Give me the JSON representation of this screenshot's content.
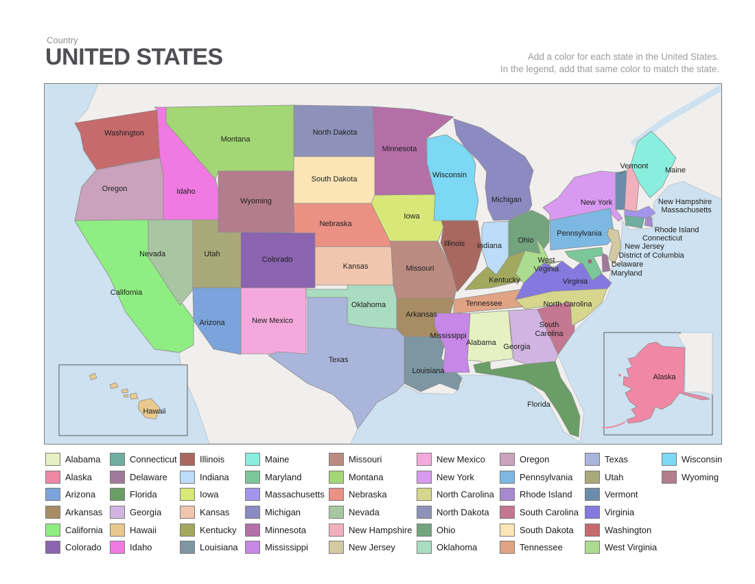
{
  "header": {
    "country_label": "Country",
    "title": "UNITED STATES",
    "instruction_line1": "Add a color for each state in the United States.",
    "instruction_line2": "In the legend, add that same color to match the state."
  },
  "map": {
    "states": {
      "wa": {
        "label": "Washington",
        "color": "#c66a6e"
      },
      "or": {
        "label": "Oregon",
        "color": "#caa2bc"
      },
      "ca": {
        "label": "California",
        "color": "#8fee82"
      },
      "nv": {
        "label": "Nevada",
        "color": "#a9c6a2"
      },
      "id": {
        "label": "Idaho",
        "color": "#f07ae2"
      },
      "mt": {
        "label": "Montana",
        "color": "#a3d674"
      },
      "wy": {
        "label": "Wyoming",
        "color": "#b37d8d"
      },
      "ut": {
        "label": "Utah",
        "color": "#a9a878"
      },
      "co": {
        "label": "Colorado",
        "color": "#8a64ae"
      },
      "az": {
        "label": "Arizona",
        "color": "#7ba3dc"
      },
      "nm": {
        "label": "New Mexico",
        "color": "#f4a9dc"
      },
      "nd": {
        "label": "North Dakota",
        "color": "#8e92ba"
      },
      "sd": {
        "label": "South Dakota",
        "color": "#fbe5b6"
      },
      "ne": {
        "label": "Nebraska",
        "color": "#ea9184"
      },
      "ks": {
        "label": "Kansas",
        "color": "#f1c6ae"
      },
      "ok": {
        "label": "Oklahoma",
        "color": "#a9dcc0"
      },
      "tx": {
        "label": "Texas",
        "color": "#aab5dc"
      },
      "mn": {
        "label": "Minnesota",
        "color": "#b56fa8"
      },
      "ia": {
        "label": "Iowa",
        "color": "#d7e878"
      },
      "mo": {
        "label": "Missouri",
        "color": "#bb8b81"
      },
      "ar": {
        "label": "Arkansas",
        "color": "#a88c64"
      },
      "la": {
        "label": "Louisiana",
        "color": "#7d96a2"
      },
      "wi": {
        "label": "Wisconsin",
        "color": "#7cd8f4"
      },
      "il": {
        "label": "Illinois",
        "color": "#a8685f"
      },
      "mi": {
        "label": "Michigan",
        "color": "#8b8ac1"
      },
      "in": {
        "label": "Indiana",
        "color": "#bcdcf8"
      },
      "oh": {
        "label": "Ohio",
        "color": "#74a47e"
      },
      "ky": {
        "label": "Kentucky",
        "color": "#a2a95e"
      },
      "tn": {
        "label": "Tennessee",
        "color": "#e0a384"
      },
      "ms": {
        "label": "Mississippi",
        "color": "#c687e6"
      },
      "al": {
        "label": "Alabama",
        "color": "#e6f0c2"
      },
      "ga": {
        "label": "Georgia",
        "color": "#d2b4e2"
      },
      "fl": {
        "label": "Florida",
        "color": "#6a9e66"
      },
      "sc": {
        "label": "South Carolina",
        "color": "#c47791",
        "lines": [
          "South",
          "Carolina"
        ]
      },
      "nc": {
        "label": "North Carolina",
        "color": "#d6d68d"
      },
      "va": {
        "label": "Virginia",
        "color": "#8579e0"
      },
      "wv": {
        "label": "West Virginia",
        "color": "#abdc90",
        "lines": [
          "West",
          "Virginia"
        ]
      },
      "pa": {
        "label": "Pennsylvania",
        "color": "#7cb8e2"
      },
      "ny": {
        "label": "New York",
        "color": "#d89af0"
      },
      "nj": {
        "label": "New Jersey",
        "color": "#d3c9a2"
      },
      "de": {
        "label": "Delaware",
        "color": "#a0799b"
      },
      "md": {
        "label": "Maryland",
        "color": "#7cc79a"
      },
      "dc": {
        "label": "District of Columbia",
        "color": "#b05c7a"
      },
      "vt": {
        "label": "Vermont",
        "color": "#6c8cab"
      },
      "nh": {
        "label": "New Hampshire",
        "color": "#f2afbe"
      },
      "me": {
        "label": "Maine",
        "color": "#8aeede"
      },
      "ma": {
        "label": "Massachusetts",
        "color": "#a495ec"
      },
      "ct": {
        "label": "Connecticut",
        "color": "#6fae9e"
      },
      "ri": {
        "label": "Rhode Island",
        "color": "#a789cf"
      },
      "ak": {
        "label": "Alaska",
        "color": "#ef87a5"
      },
      "hi": {
        "label": "Hawaii",
        "color": "#e9c98e"
      }
    }
  },
  "legend": {
    "items": [
      {
        "label": "Alabama",
        "color": "#e6f0c2"
      },
      {
        "label": "Alaska",
        "color": "#ef87a5"
      },
      {
        "label": "Arizona",
        "color": "#7ba3dc"
      },
      {
        "label": "Arkansas",
        "color": "#a88c64"
      },
      {
        "label": "California",
        "color": "#8fee82"
      },
      {
        "label": "Colorado",
        "color": "#8a64ae"
      },
      {
        "label": "Connecticut",
        "color": "#6fae9e"
      },
      {
        "label": "Delaware",
        "color": "#a0799b"
      },
      {
        "label": "Florida",
        "color": "#6a9e66"
      },
      {
        "label": "Georgia",
        "color": "#d2b4e2"
      },
      {
        "label": "Hawaii",
        "color": "#e9c98e"
      },
      {
        "label": "Idaho",
        "color": "#f07ae2"
      },
      {
        "label": "Illinois",
        "color": "#a8685f"
      },
      {
        "label": "Indiana",
        "color": "#bcdcf8"
      },
      {
        "label": "Iowa",
        "color": "#d7e878"
      },
      {
        "label": "Kansas",
        "color": "#f1c6ae"
      },
      {
        "label": "Kentucky",
        "color": "#a2a95e"
      },
      {
        "label": "Louisiana",
        "color": "#7d96a2"
      },
      {
        "label": "Maine",
        "color": "#8aeede"
      },
      {
        "label": "Maryland",
        "color": "#7cc79a"
      },
      {
        "label": "Massachusetts",
        "color": "#a495ec"
      },
      {
        "label": "Michigan",
        "color": "#8b8ac1"
      },
      {
        "label": "Minnesota",
        "color": "#b56fa8"
      },
      {
        "label": "Mississippi",
        "color": "#c687e6"
      },
      {
        "label": "Missouri",
        "color": "#bb8b81"
      },
      {
        "label": "Montana",
        "color": "#a3d674"
      },
      {
        "label": "Nebraska",
        "color": "#ea9184"
      },
      {
        "label": "Nevada",
        "color": "#a9c6a2"
      },
      {
        "label": "New Hampshire",
        "color": "#f2afbe"
      },
      {
        "label": "New Jersey",
        "color": "#d3c9a2"
      },
      {
        "label": "New Mexico",
        "color": "#f4a9dc"
      },
      {
        "label": "New York",
        "color": "#d89af0"
      },
      {
        "label": "North Carolina",
        "color": "#d6d68d"
      },
      {
        "label": "North Dakota",
        "color": "#8e92ba"
      },
      {
        "label": "Ohio",
        "color": "#74a47e"
      },
      {
        "label": "Oklahoma",
        "color": "#a9dcc0"
      },
      {
        "label": "Oregon",
        "color": "#caa2bc"
      },
      {
        "label": "Pennsylvania",
        "color": "#7cb8e2"
      },
      {
        "label": "Rhode Island",
        "color": "#a789cf"
      },
      {
        "label": "South Carolina",
        "color": "#c47791"
      },
      {
        "label": "South Dakota",
        "color": "#fbe5b6"
      },
      {
        "label": "Tennessee",
        "color": "#e0a384"
      },
      {
        "label": "Texas",
        "color": "#aab5dc"
      },
      {
        "label": "Utah",
        "color": "#a9a878"
      },
      {
        "label": "Vermont",
        "color": "#6c8cab"
      },
      {
        "label": "Virginia",
        "color": "#8579e0"
      },
      {
        "label": "Washington",
        "color": "#c66a6e"
      },
      {
        "label": "West Virginia",
        "color": "#abdc90"
      },
      {
        "label": "Wisconsin",
        "color": "#7cd8f4"
      },
      {
        "label": "Wyoming",
        "color": "#b37d8d"
      }
    ]
  }
}
